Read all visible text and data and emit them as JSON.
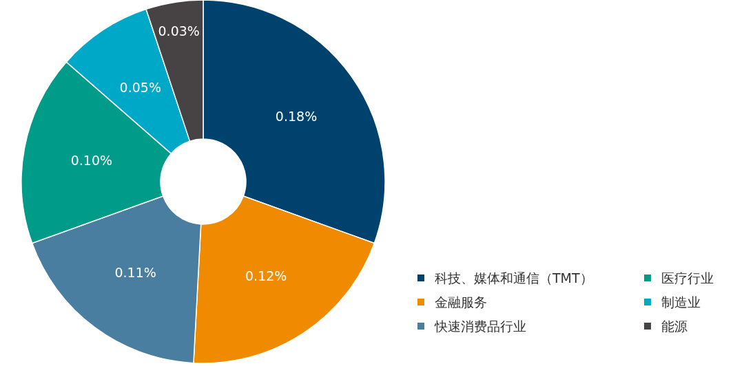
{
  "chart_data": {
    "type": "donut",
    "categories": [
      "科技、媒体和通信（TMT）",
      "金融服务",
      "快速消费品行业",
      "医疗行业",
      "制造业",
      "能源"
    ],
    "values": [
      0.18,
      0.12,
      0.11,
      0.1,
      0.05,
      0.03
    ],
    "value_labels": [
      "0.18%",
      "0.12%",
      "0.11%",
      "0.10%",
      "0.05%",
      "0.03%"
    ],
    "colors": [
      "#00426e",
      "#f08a00",
      "#4a7ea0",
      "#009b89",
      "#00a8c8",
      "#474244"
    ],
    "legend": "bottom right"
  }
}
